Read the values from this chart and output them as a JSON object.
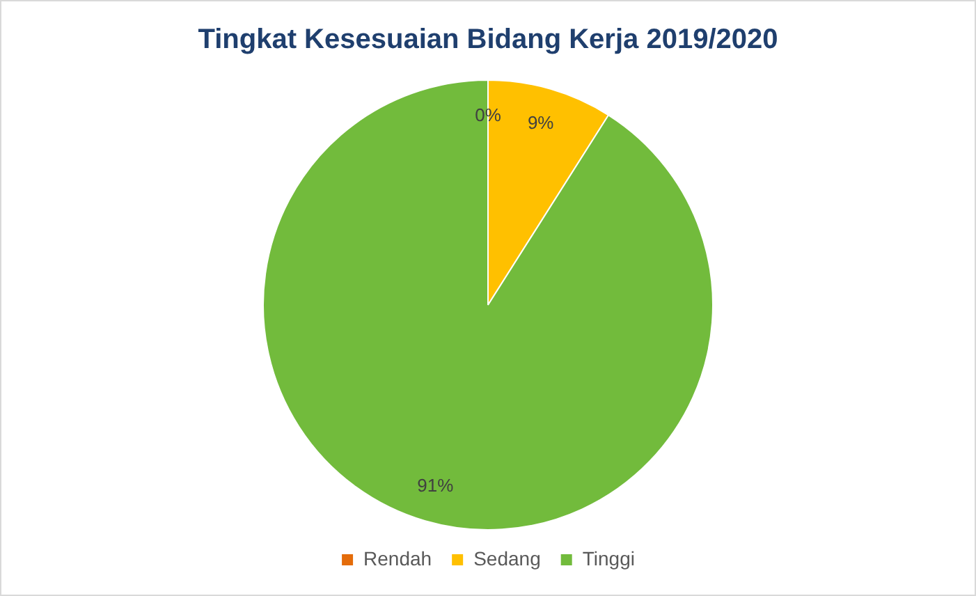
{
  "chart_data": {
    "type": "pie",
    "title": "Tingkat Kesesuaian Bidang Kerja 2019/2020",
    "categories": [
      "Rendah",
      "Sedang",
      "Tinggi"
    ],
    "values": [
      0,
      9,
      91
    ],
    "colors": [
      "#e46c0a",
      "#ffc000",
      "#72bb3c"
    ],
    "value_labels": [
      "0%",
      "9%",
      "91%"
    ],
    "legend": "bottom"
  }
}
